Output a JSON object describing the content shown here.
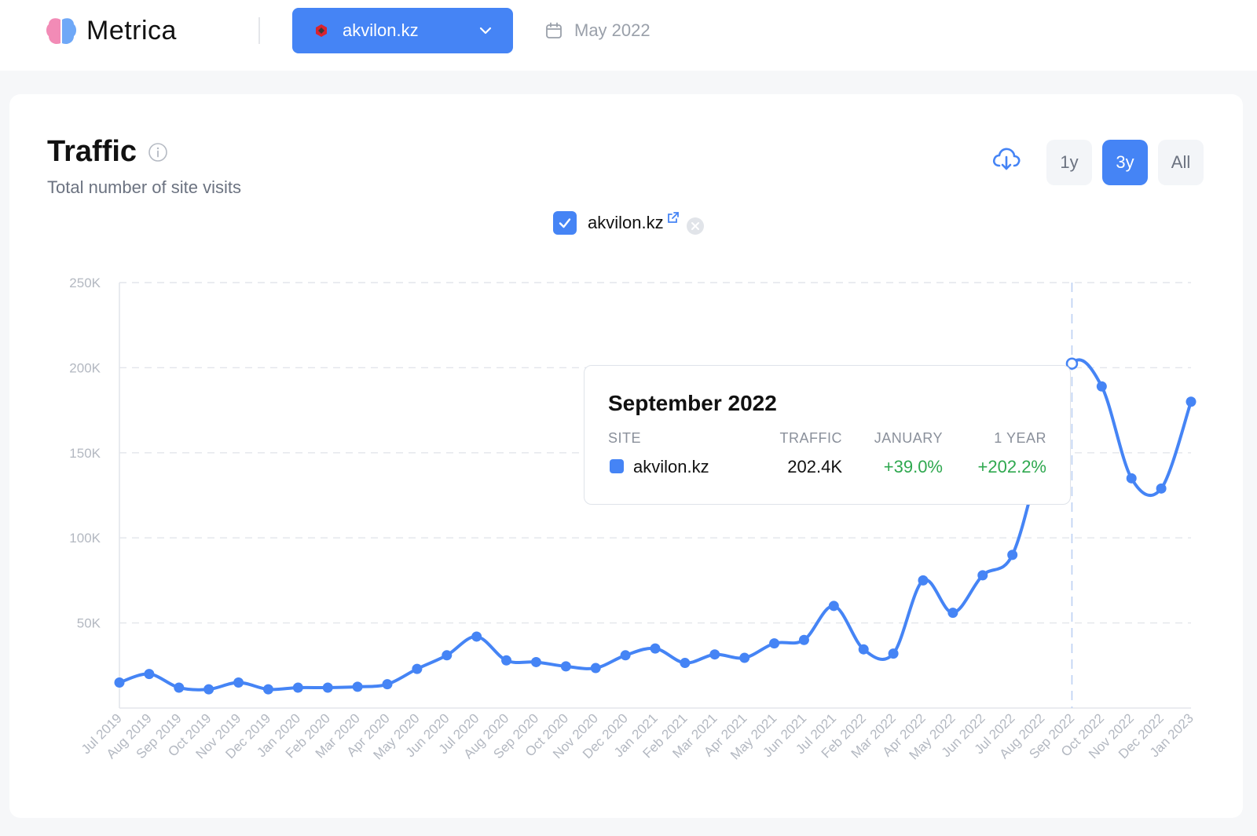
{
  "app": {
    "name": "Metrica"
  },
  "header": {
    "site_select": {
      "label": "akvilon.kz"
    },
    "date_label": "May 2022"
  },
  "panel": {
    "title": "Traffic",
    "subtitle": "Total number of site visits",
    "ranges": [
      {
        "label": "1y",
        "active": false
      },
      {
        "label": "3y",
        "active": true
      },
      {
        "label": "All",
        "active": false
      }
    ],
    "legend": {
      "label": "akvilon.kz",
      "checked": true
    }
  },
  "tooltip": {
    "title": "September 2022",
    "headers": {
      "site": "SITE",
      "traffic": "TRAFFIC",
      "january": "JANUARY",
      "year": "1 YEAR"
    },
    "row": {
      "site": "akvilon.kz",
      "traffic": "202.4K",
      "january": "+39.0%",
      "year": "+202.2%"
    }
  },
  "colors": {
    "accent": "#4584f5",
    "positive": "#2fa84f",
    "muted": "#9aa0aa"
  },
  "chart_data": {
    "type": "line",
    "x": [
      "Jul 2019",
      "Aug 2019",
      "Sep 2019",
      "Oct 2019",
      "Nov 2019",
      "Dec 2019",
      "Jan 2020",
      "Feb 2020",
      "Mar 2020",
      "Apr 2020",
      "May 2020",
      "Jun 2020",
      "Jul 2020",
      "Aug 2020",
      "Sep 2020",
      "Oct 2020",
      "Nov 2020",
      "Dec 2020",
      "Jan 2021",
      "Feb 2021",
      "Mar 2021",
      "Apr 2021",
      "May 2021",
      "Jun 2021",
      "Jul 2021",
      "Feb 2022",
      "Mar 2022",
      "Apr 2022",
      "May 2022",
      "Jun 2022",
      "Jul 2022",
      "Aug 2022",
      "Sep 2022",
      "Oct 2022",
      "Nov 2022",
      "Dec 2022",
      "Jan 2023"
    ],
    "series": [
      {
        "name": "akvilon.kz",
        "values": [
          15000,
          20000,
          12000,
          11000,
          15000,
          11000,
          12000,
          12000,
          12500,
          14000,
          23000,
          31000,
          42000,
          28000,
          27000,
          24500,
          23500,
          31000,
          35000,
          26500,
          31500,
          29500,
          38000,
          40000,
          60000,
          34500,
          32000,
          75000,
          56000,
          78000,
          90000,
          150000,
          202400,
          189000,
          135000,
          129000,
          180000
        ]
      }
    ],
    "ylim": [
      0,
      250000
    ],
    "yticks": [
      {
        "value": 50000,
        "label": "50K"
      },
      {
        "value": 100000,
        "label": "100K"
      },
      {
        "value": 150000,
        "label": "150K"
      },
      {
        "value": 200000,
        "label": "200K"
      },
      {
        "value": 250000,
        "label": "250K"
      }
    ],
    "grid": true,
    "highlight_index": 32
  }
}
